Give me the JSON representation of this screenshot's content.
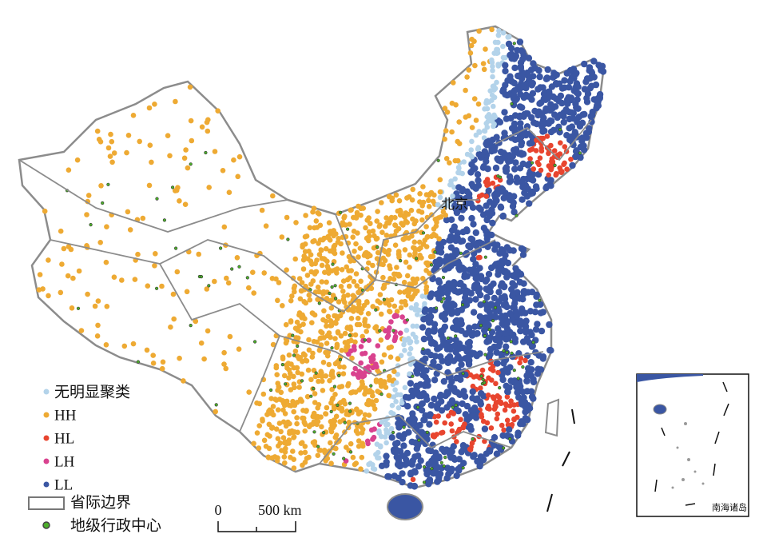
{
  "labels": {
    "capital": "北京",
    "inset": "南海诸岛"
  },
  "legend": {
    "items": [
      {
        "label": "无明显聚类",
        "color": "#b3d3ea"
      },
      {
        "label": "HH",
        "color": "#eeaa33"
      },
      {
        "label": "HL",
        "color": "#e8452f"
      },
      {
        "label": "LH",
        "color": "#d9428f"
      },
      {
        "label": "LL",
        "color": "#3a56a3"
      }
    ],
    "province_border": "省际边界",
    "admin_center": "地级行政中心"
  },
  "scale_bar": {
    "start": "0",
    "end": "500 km"
  }
}
